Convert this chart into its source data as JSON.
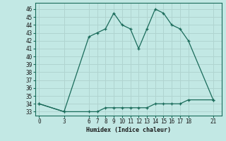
{
  "x": [
    0,
    3,
    6,
    7,
    8,
    9,
    10,
    11,
    12,
    13,
    14,
    15,
    16,
    17,
    18,
    21
  ],
  "y_line1": [
    34,
    33,
    42.5,
    43,
    43.5,
    45.5,
    44,
    43.5,
    41,
    43.5,
    46,
    45.5,
    44,
    43.5,
    42,
    34.5
  ],
  "y_line2": [
    34,
    33,
    33,
    33,
    33.5,
    33.5,
    33.5,
    33.5,
    33.5,
    33.5,
    34,
    34,
    34,
    34,
    34.5,
    34.5
  ],
  "line_color": "#1a6b5a",
  "bg_color": "#c2e8e4",
  "grid_color": "#b0d4d0",
  "xlabel": "Humidex (Indice chaleur)",
  "xticks": [
    0,
    3,
    6,
    7,
    8,
    9,
    10,
    11,
    12,
    13,
    14,
    15,
    16,
    17,
    18,
    21
  ],
  "yticks": [
    33,
    34,
    35,
    36,
    37,
    38,
    39,
    40,
    41,
    42,
    43,
    44,
    45,
    46
  ],
  "ylim": [
    32.5,
    46.8
  ],
  "xlim": [
    -0.5,
    22.0
  ]
}
